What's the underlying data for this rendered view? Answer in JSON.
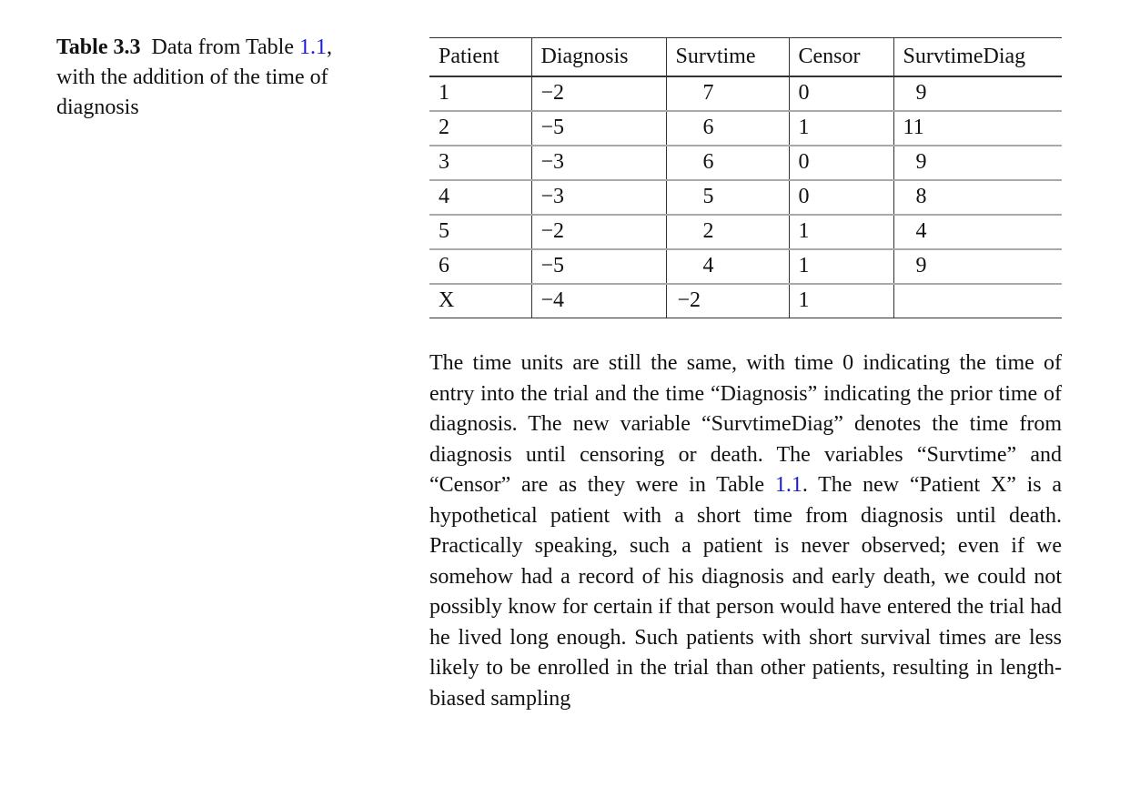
{
  "caption": {
    "label": "Table 3.3",
    "text_before": "Data from",
    "text_ref_word": "Table",
    "ref": "1.1",
    "text_after": ", with the addition of the time of diagnosis"
  },
  "table": {
    "headers": [
      "Patient",
      "Diagnosis",
      "Survtime",
      "Censor",
      "SurvtimeDiag"
    ],
    "rows": [
      [
        "1",
        "−2",
        "7",
        "0",
        "9"
      ],
      [
        "2",
        "−5",
        "6",
        "1",
        "11"
      ],
      [
        "3",
        "−3",
        "6",
        "0",
        "9"
      ],
      [
        "4",
        "−3",
        "5",
        "0",
        "8"
      ],
      [
        "5",
        "−2",
        "2",
        "1",
        "4"
      ],
      [
        "6",
        "−5",
        "4",
        "1",
        "9"
      ],
      [
        "X",
        "−4",
        "−2",
        "1",
        ""
      ]
    ]
  },
  "note": {
    "part1": "The time units are still the same, with time 0 indicating the time of entry into the trial and the time “Diagnosis” indicating the prior time of diagnosis. The new variable “SurvtimeDiag” denotes the time from diagnosis until censoring or death. The variables “Survtime” and “Censor” are as they were in",
    "ref_word": "Table",
    "ref": "1.1",
    "part2": ". The new “Patient X” is a hypothetical patient with a short time from diagnosis until death. Practically speaking, such a patient is never observed; even if we somehow had a record of his diagnosis and early death, we could not possibly know for certain if that person would have entered the trial had he lived long enough. Such patients with short survival times are less likely to be enrolled in the trial than other patients, resulting in length-biased sampling"
  }
}
